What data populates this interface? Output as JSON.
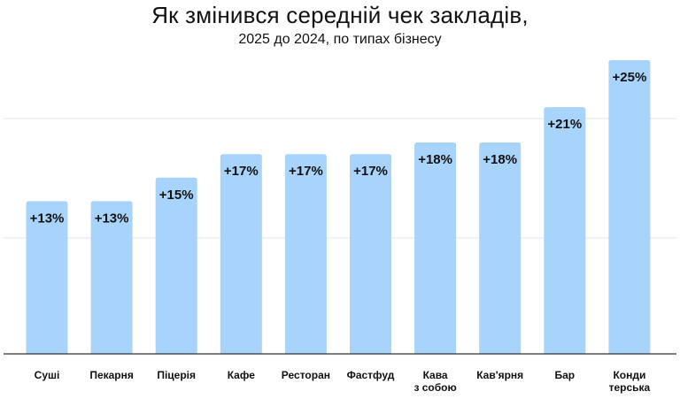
{
  "chart_data": {
    "type": "bar",
    "title": "Як змінився середній чек закладів,",
    "subtitle": "2025 до 2024, по типах бізнесу",
    "categories": [
      "Суші",
      "Пекарня",
      "Піцерія",
      "Кафе",
      "Ресторан",
      "Фастфуд",
      "Кава\nз собою",
      "Кав'ярня",
      "Бар",
      "Конди\nтерська"
    ],
    "values": [
      13,
      13,
      15,
      17,
      17,
      17,
      18,
      18,
      21,
      25
    ],
    "value_labels": [
      "+13%",
      "+13%",
      "+15%",
      "+17%",
      "+17%",
      "+17%",
      "+18%",
      "+18%",
      "+21%",
      "+25%"
    ],
    "unit": "%",
    "ylim": [
      0,
      25
    ],
    "grid": true,
    "bar_color": "#a8d4fb"
  }
}
